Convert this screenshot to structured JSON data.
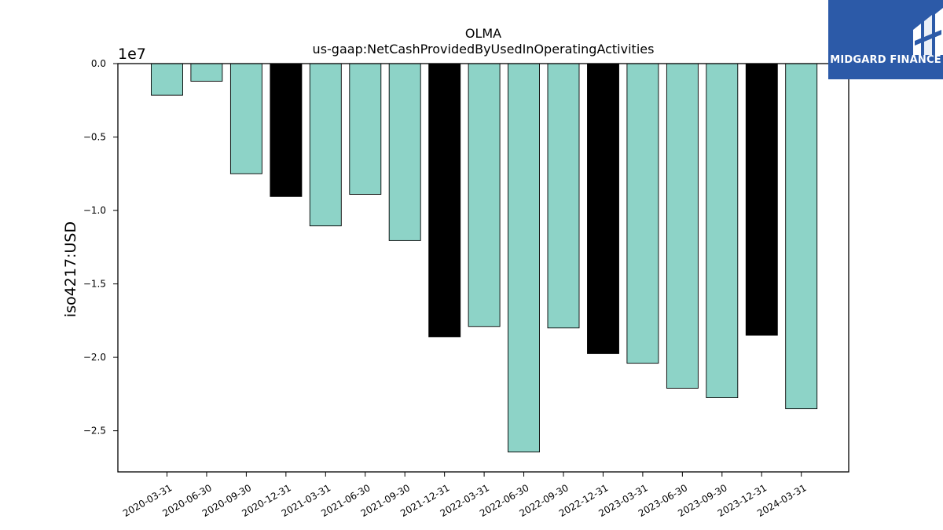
{
  "brand": {
    "name": "MIDGARD FINANCE",
    "bg_color": "#2c5aa8"
  },
  "chart_data": {
    "type": "bar",
    "title": "OLMA",
    "subtitle": "us-gaap:NetCashProvidedByUsedInOperatingActivities",
    "ylabel": "iso4217:USD",
    "xlabel": "",
    "offset_label": "1e7",
    "ylim": [
      -27800000.0,
      0
    ],
    "yticks": [
      0.0,
      -0.5,
      -1.0,
      -1.5,
      -2.0,
      -2.5
    ],
    "ytick_labels": [
      "0.0",
      "−0.5",
      "−1.0",
      "−1.5",
      "−2.0",
      "−2.5"
    ],
    "grid": false,
    "categories": [
      "2020-03-31",
      "2020-06-30",
      "2020-09-30",
      "2020-12-31",
      "2021-03-31",
      "2021-06-30",
      "2021-09-30",
      "2021-12-31",
      "2022-03-31",
      "2022-06-30",
      "2022-09-30",
      "2022-12-31",
      "2023-03-31",
      "2023-06-30",
      "2023-09-30",
      "2023-12-31",
      "2024-03-31"
    ],
    "values": [
      -2150000,
      -1200000,
      -7500000,
      -9050000,
      -11050000,
      -8900000,
      -12050000,
      -18600000,
      -17900000,
      -26450000,
      -18000000,
      -19750000,
      -20400000,
      -22100000,
      -22750000,
      -18500000,
      -23500000
    ],
    "bar_colors": [
      "#8dd3c7",
      "#8dd3c7",
      "#8dd3c7",
      "#000000",
      "#8dd3c7",
      "#8dd3c7",
      "#8dd3c7",
      "#000000",
      "#8dd3c7",
      "#8dd3c7",
      "#8dd3c7",
      "#000000",
      "#8dd3c7",
      "#8dd3c7",
      "#8dd3c7",
      "#000000",
      "#8dd3c7"
    ]
  }
}
